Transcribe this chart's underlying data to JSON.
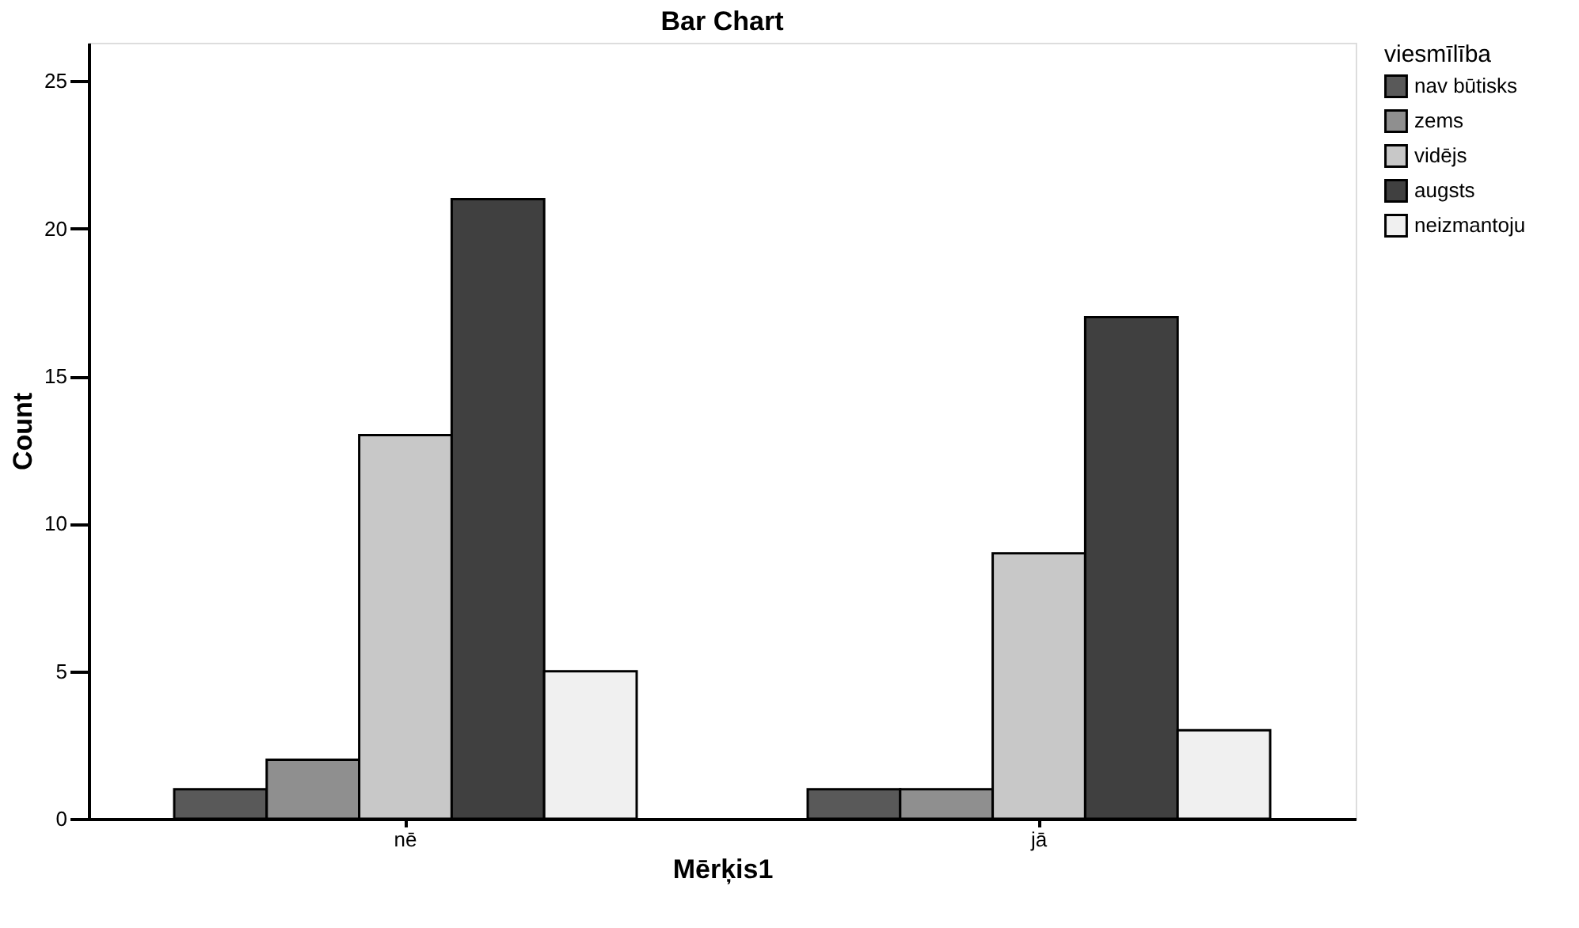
{
  "chart_data": {
    "type": "bar",
    "title": "Bar Chart",
    "xlabel": "Mērķis1",
    "ylabel": "Count",
    "legend_title": "viesmīlība",
    "categories": [
      "nē",
      "jā"
    ],
    "series": [
      {
        "name": "nav būtisks",
        "color": "#595959",
        "values": [
          1,
          1
        ]
      },
      {
        "name": "zems",
        "color": "#8f8f8f",
        "values": [
          2,
          1
        ]
      },
      {
        "name": "vidējs",
        "color": "#c8c8c8",
        "values": [
          13,
          9
        ]
      },
      {
        "name": "augsts",
        "color": "#404040",
        "values": [
          21,
          17
        ]
      },
      {
        "name": "neizmantoju",
        "color": "#f0f0f0",
        "values": [
          5,
          3
        ]
      }
    ],
    "ylim": [
      0,
      26.3
    ],
    "yticks": [
      0,
      5,
      10,
      15,
      20,
      25
    ],
    "grid": false,
    "legend": "top right"
  }
}
